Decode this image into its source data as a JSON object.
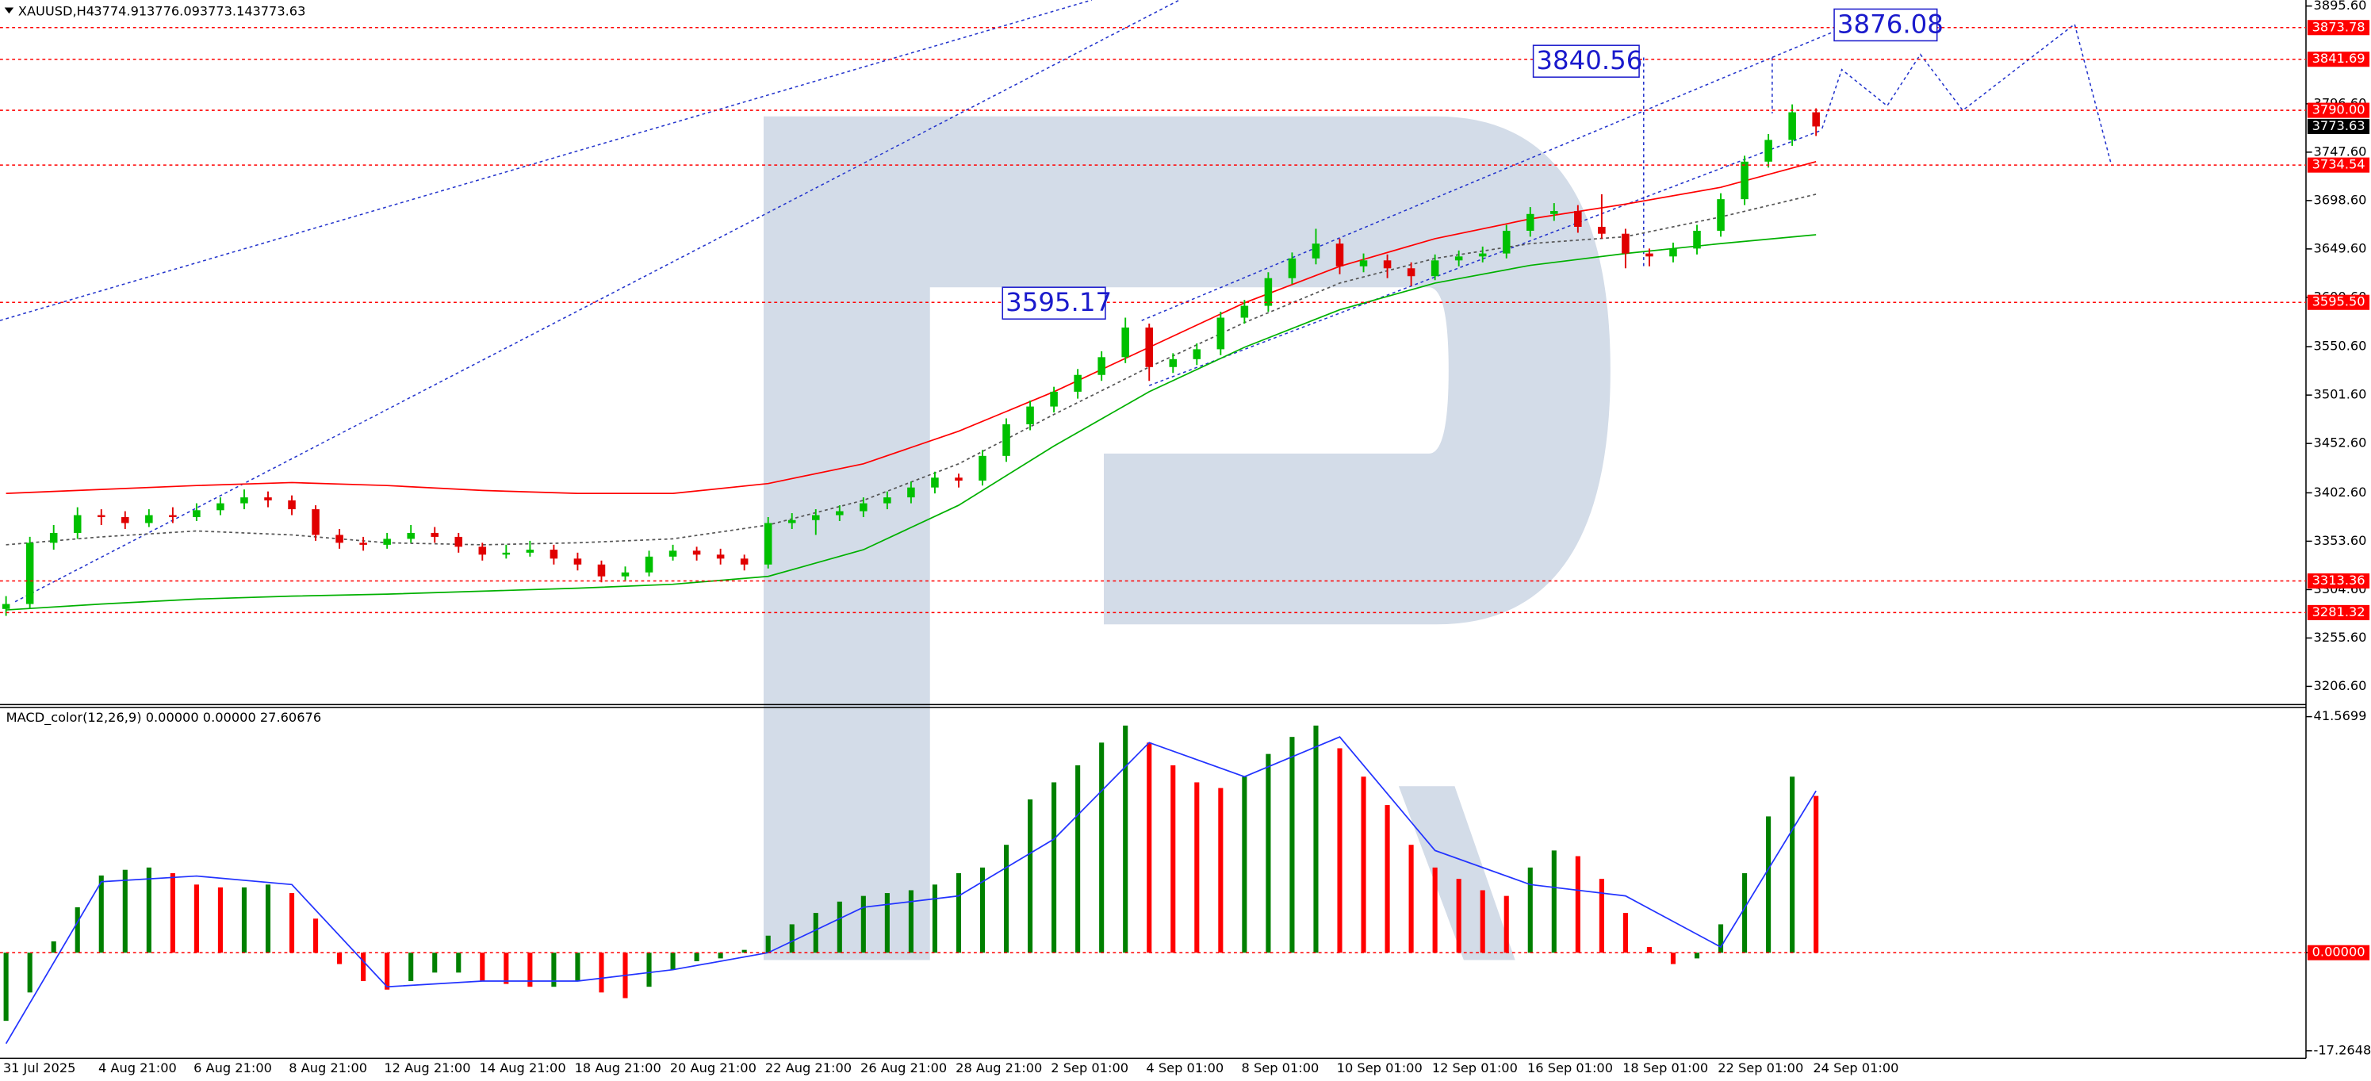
{
  "chart_data": [
    {
      "type": "candlestick",
      "title": "XAUUSD,H4",
      "header_values": [
        3774.91,
        3776.09,
        3773.14,
        3773.63
      ],
      "categories": [
        "31 Jul 2025",
        null,
        null,
        null,
        "4 Aug 21:00",
        null,
        null,
        null,
        "6 Aug 21:00",
        null,
        null,
        null,
        "8 Aug 21:00",
        null,
        null,
        null,
        "12 Aug 21:00",
        null,
        null,
        null,
        "14 Aug 21:00",
        null,
        null,
        null,
        "18 Aug 21:00",
        null,
        null,
        null,
        "20 Aug 21:00",
        null,
        null,
        null,
        "22 Aug 21:00",
        null,
        null,
        null,
        "26 Aug 21:00",
        null,
        null,
        null,
        "28 Aug 21:00",
        null,
        null,
        null,
        "2 Sep 01:00",
        null,
        null,
        null,
        "4 Sep 01:00",
        null,
        null,
        null,
        "8 Sep 01:00",
        null,
        null,
        null,
        "10 Sep 01:00",
        null,
        null,
        null,
        "12 Sep 01:00",
        null,
        null,
        null,
        "16 Sep 01:00",
        null,
        null,
        null,
        "18 Sep 01:00",
        null,
        null,
        null,
        "22 Sep 01:00",
        null,
        null,
        null,
        "24 Sep 01:00"
      ],
      "open": [
        3285,
        3290,
        3352,
        3362,
        3380,
        3378,
        3372,
        3380,
        3378,
        3385,
        3392,
        3398,
        3395,
        3386,
        3360,
        3352,
        3350,
        3356,
        3362,
        3358,
        3348,
        3340,
        3342,
        3345,
        3336,
        3330,
        3318,
        3322,
        3338,
        3344,
        3340,
        3336,
        3330,
        3372,
        3375,
        3380,
        3384,
        3392,
        3398,
        3408,
        3418,
        3415,
        3440,
        3472,
        3490,
        3505,
        3522,
        3540,
        3570,
        3530,
        3538,
        3548,
        3580,
        3592,
        3620,
        3640,
        3655,
        3632,
        3638,
        3630,
        3622,
        3638,
        3642,
        3645,
        3668,
        3685,
        3688,
        3672,
        3665,
        3645,
        3642,
        3650,
        3668,
        3700,
        3738,
        3760,
        3788
      ],
      "high": [
        3298,
        3358,
        3370,
        3388,
        3386,
        3384,
        3386,
        3388,
        3392,
        3398,
        3406,
        3404,
        3400,
        3390,
        3366,
        3358,
        3362,
        3370,
        3368,
        3362,
        3352,
        3350,
        3354,
        3350,
        3342,
        3334,
        3328,
        3344,
        3350,
        3348,
        3346,
        3340,
        3378,
        3382,
        3386,
        3390,
        3398,
        3404,
        3414,
        3424,
        3422,
        3446,
        3478,
        3496,
        3510,
        3528,
        3546,
        3580,
        3574,
        3544,
        3554,
        3586,
        3598,
        3626,
        3646,
        3670,
        3660,
        3645,
        3644,
        3636,
        3644,
        3648,
        3652,
        3674,
        3692,
        3696,
        3694,
        3705,
        3670,
        3650,
        3656,
        3674,
        3706,
        3744,
        3766,
        3796,
        3792
      ],
      "low": [
        3278,
        3286,
        3345,
        3356,
        3370,
        3366,
        3368,
        3372,
        3374,
        3380,
        3386,
        3388,
        3380,
        3354,
        3346,
        3344,
        3346,
        3352,
        3352,
        3342,
        3334,
        3336,
        3338,
        3330,
        3324,
        3312,
        3314,
        3318,
        3334,
        3334,
        3330,
        3324,
        3326,
        3366,
        3360,
        3374,
        3378,
        3386,
        3392,
        3402,
        3408,
        3410,
        3434,
        3466,
        3484,
        3498,
        3516,
        3534,
        3516,
        3524,
        3532,
        3542,
        3574,
        3586,
        3614,
        3634,
        3624,
        3626,
        3620,
        3612,
        3618,
        3632,
        3636,
        3640,
        3662,
        3678,
        3666,
        3660,
        3630,
        3632,
        3636,
        3644,
        3662,
        3694,
        3732,
        3754,
        3764
      ],
      "close": [
        3290,
        3352,
        3362,
        3380,
        3378,
        3372,
        3380,
        3378,
        3385,
        3392,
        3398,
        3395,
        3386,
        3360,
        3352,
        3350,
        3356,
        3362,
        3358,
        3348,
        3340,
        3342,
        3345,
        3336,
        3330,
        3318,
        3322,
        3338,
        3344,
        3340,
        3336,
        3330,
        3372,
        3375,
        3380,
        3384,
        3392,
        3398,
        3408,
        3418,
        3415,
        3440,
        3472,
        3490,
        3505,
        3522,
        3540,
        3570,
        3530,
        3538,
        3548,
        3580,
        3592,
        3620,
        3640,
        3655,
        3632,
        3638,
        3630,
        3622,
        3638,
        3642,
        3645,
        3668,
        3685,
        3688,
        3672,
        3665,
        3645,
        3642,
        3650,
        3668,
        3700,
        3738,
        3760,
        3788,
        3773.63
      ],
      "up_color": "#00c000",
      "down_color": "#e00000",
      "ylim": [
        3188.2,
        3901.7
      ],
      "yticks": [
        {
          "value": 3895.6,
          "label": "3895.60"
        },
        {
          "value": 3796.6,
          "label": "3796.60"
        },
        {
          "value": 3747.6,
          "label": "3747.60"
        },
        {
          "value": 3698.6,
          "label": "3698.60"
        },
        {
          "value": 3649.6,
          "label": "3649.60"
        },
        {
          "value": 3600.6,
          "label": "3600.60"
        },
        {
          "value": 3550.6,
          "label": "3550.60"
        },
        {
          "value": 3501.6,
          "label": "3501.60"
        },
        {
          "value": 3452.6,
          "label": "3452.60"
        },
        {
          "value": 3402.6,
          "label": "3402.60"
        },
        {
          "value": 3353.6,
          "label": "3353.60"
        },
        {
          "value": 3304.6,
          "label": "3304.60"
        },
        {
          "value": 3255.6,
          "label": "3255.60"
        },
        {
          "value": 3206.6,
          "label": "3206.60"
        }
      ],
      "levels": [
        3873.78,
        3841.69,
        {
          "value": 3790,
          "label": "3790.00"
        },
        3734.54,
        {
          "value": 3595.5,
          "label": "3595.50"
        },
        3313.36,
        3281.32
      ],
      "level_color": "#ff0000",
      "current_price": 3773.63,
      "lines": [
        {
          "color": "#ff0000",
          "dashed": false,
          "values": [
            3402,
            3406,
            3410,
            3413,
            3410,
            3405,
            3402,
            3402,
            3412,
            3432,
            3465,
            3505,
            3550,
            3595,
            3632,
            3660,
            3680,
            3695,
            3712,
            3738
          ]
        },
        {
          "color": "#00b000",
          "dashed": false,
          "values": [
            3284,
            3290,
            3295,
            3298,
            3300,
            3303,
            3306,
            3310,
            3318,
            3345,
            3390,
            3450,
            3505,
            3550,
            3588,
            3615,
            3633,
            3645,
            3655,
            3664
          ]
        },
        {
          "color": "#555555",
          "dashed": true,
          "values": [
            3350,
            3358,
            3364,
            3360,
            3352,
            3350,
            3352,
            3356,
            3370,
            3395,
            3432,
            3482,
            3530,
            3575,
            3615,
            3640,
            3655,
            3662,
            3682,
            3705
          ]
        }
      ],
      "annotations": [
        3595.17,
        3840.56,
        3876.08
      ]
    },
    {
      "type": "bar",
      "title": "MACD_color(12,26,9) 0.00000 0.00000 27.60676",
      "values": [
        -12,
        -7,
        2,
        8,
        13.6,
        14.6,
        15,
        14,
        12,
        11.5,
        11.5,
        12,
        10.5,
        6,
        -2,
        -5,
        -6.5,
        -5,
        -3.5,
        -3.5,
        -5,
        -5.5,
        -6,
        -6,
        -5,
        -7,
        -8,
        -6,
        -3,
        -1.5,
        -1,
        0.5,
        3,
        5,
        7,
        9,
        10,
        10.5,
        11,
        12,
        14,
        15,
        19,
        27,
        30,
        33,
        37,
        40,
        37,
        33,
        30,
        29,
        31,
        35,
        38,
        40,
        36,
        31,
        26,
        19,
        15,
        13,
        11,
        10,
        15,
        18,
        17,
        13,
        7,
        1,
        -2,
        -1,
        5,
        14,
        24,
        31,
        27.60676
      ],
      "up_color": "#008000",
      "down_color": "#ff0000",
      "signal": {
        "color": "#2233ff",
        "values": [
          -16,
          12.5,
          13.5,
          12,
          -6,
          -5,
          -5,
          -3,
          0,
          8,
          10,
          20,
          37,
          31,
          38,
          18,
          12,
          10,
          1,
          28.5
        ]
      },
      "ylim": [
        -18.6,
        43.17
      ],
      "yticks": [
        41.5699,
        {
          "value": 0,
          "label": "0.00000"
        },
        -17.2648
      ]
    }
  ]
}
